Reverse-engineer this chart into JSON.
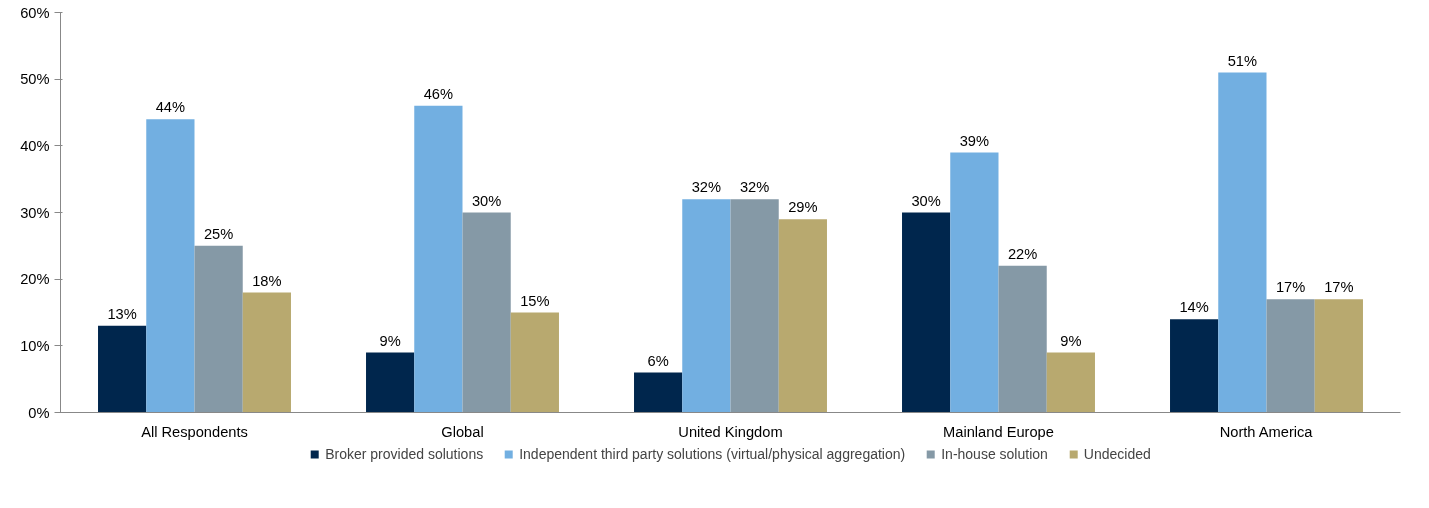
{
  "chart_data": {
    "type": "bar",
    "categories": [
      "All Respondents",
      "Global",
      "United Kingdom",
      "Mainland Europe",
      "North America"
    ],
    "series": [
      {
        "name": "Broker provided solutions",
        "color": "#00264d",
        "values": [
          13,
          9,
          6,
          30,
          14
        ],
        "value_labels": [
          "13%",
          "9%",
          "6%",
          "30%",
          "14%"
        ]
      },
      {
        "name": "Independent third party solutions (virtual/physical aggregation)",
        "color": "#72afe1",
        "values": [
          44,
          46,
          32,
          39,
          51
        ],
        "value_labels": [
          "44%",
          "46%",
          "32%",
          "39%",
          "51%"
        ]
      },
      {
        "name": "In-house solution",
        "color": "#8599a6",
        "values": [
          25,
          30,
          32,
          22,
          17
        ],
        "value_labels": [
          "25%",
          "30%",
          "32%",
          "22%",
          "17%"
        ]
      },
      {
        "name": "Undecided",
        "color": "#b8a96f",
        "values": [
          18,
          15,
          29,
          9,
          17
        ],
        "value_labels": [
          "18%",
          "15%",
          "29%",
          "9%",
          "17%"
        ]
      }
    ],
    "ylim": [
      0,
      60
    ],
    "yticks": [
      {
        "value": 0,
        "label": "0%"
      },
      {
        "value": 10,
        "label": "10%"
      },
      {
        "value": 20,
        "label": "20%"
      },
      {
        "value": 30,
        "label": "30%"
      },
      {
        "value": 40,
        "label": "40%"
      },
      {
        "value": 50,
        "label": "50%"
      },
      {
        "value": 60,
        "label": "60%"
      }
    ],
    "grid": false,
    "legend": "bottom"
  }
}
